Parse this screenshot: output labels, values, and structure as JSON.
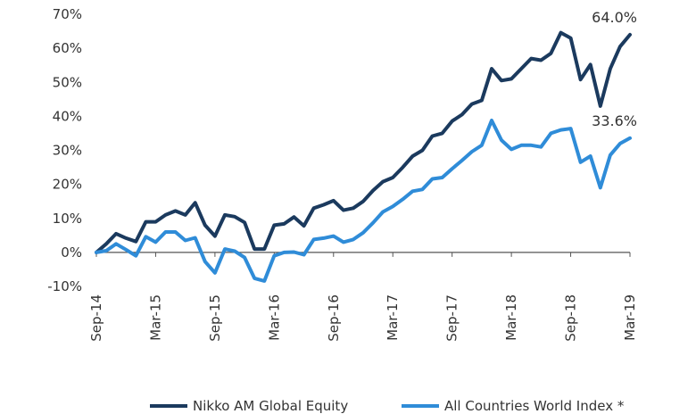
{
  "chart_data": {
    "type": "line",
    "x": [
      "Sep-14",
      "Oct-14",
      "Nov-14",
      "Dec-14",
      "Jan-15",
      "Feb-15",
      "Mar-15",
      "Apr-15",
      "May-15",
      "Jun-15",
      "Jul-15",
      "Aug-15",
      "Sep-15",
      "Oct-15",
      "Nov-15",
      "Dec-15",
      "Jan-16",
      "Feb-16",
      "Mar-16",
      "Apr-16",
      "May-16",
      "Jun-16",
      "Jul-16",
      "Aug-16",
      "Sep-16",
      "Oct-16",
      "Nov-16",
      "Dec-16",
      "Jan-17",
      "Feb-17",
      "Mar-17",
      "Apr-17",
      "May-17",
      "Jun-17",
      "Jul-17",
      "Aug-17",
      "Sep-17",
      "Oct-17",
      "Nov-17",
      "Dec-17",
      "Jan-18",
      "Feb-18",
      "Mar-18",
      "Apr-18",
      "May-18",
      "Jun-18",
      "Jul-18",
      "Aug-18",
      "Sep-18",
      "Oct-18",
      "Nov-18",
      "Dec-18",
      "Jan-19",
      "Feb-19",
      "Mar-19"
    ],
    "x_tick_labels": [
      "Sep-14",
      "Mar-15",
      "Sep-15",
      "Mar-16",
      "Sep-16",
      "Mar-17",
      "Sep-17",
      "Mar-18",
      "Sep-18",
      "Mar-19"
    ],
    "series": [
      {
        "name": "Nikko AM Global Equity",
        "color": "#1b3a5e",
        "values": [
          0,
          2.5,
          5.5,
          4.2,
          3.2,
          9,
          9,
          11,
          12.2,
          11,
          14.6,
          8,
          4.8,
          11,
          10.5,
          8.8,
          1,
          1,
          8,
          8.4,
          10.4,
          7.8,
          13,
          14,
          15.2,
          12.4,
          13,
          15,
          18.2,
          20.8,
          22,
          25,
          28.3,
          30,
          34.2,
          35,
          38.6,
          40.5,
          43.6,
          44.7,
          54,
          50.5,
          51,
          54,
          57,
          56.5,
          58.5,
          64.6,
          63,
          50.8,
          55.2,
          43,
          54,
          60.5,
          64
        ]
      },
      {
        "name": "All Countries World Index *",
        "color": "#2f8cd8",
        "values": [
          0,
          0.5,
          2.5,
          0.8,
          -1,
          4.6,
          3,
          6,
          6,
          3.5,
          4.3,
          -2.7,
          -6,
          1,
          0.4,
          -1.5,
          -7.6,
          -8.4,
          -1,
          0,
          0.1,
          -0.7,
          3.8,
          4.2,
          4.8,
          3,
          3.8,
          5.8,
          8.7,
          11.9,
          13.5,
          15.6,
          18,
          18.5,
          21.6,
          22,
          24.6,
          27,
          29.6,
          31.5,
          38.8,
          33,
          30.3,
          31.5,
          31.5,
          31,
          35,
          36,
          36.4,
          26.5,
          28.3,
          19,
          28.6,
          32,
          33.6
        ]
      }
    ],
    "ylim": [
      -10,
      70
    ],
    "y_ticks": [
      "-10%",
      "0%",
      "10%",
      "20%",
      "30%",
      "40%",
      "50%",
      "60%",
      "70%"
    ],
    "y_tick_values": [
      -10,
      0,
      10,
      20,
      30,
      40,
      50,
      60,
      70
    ],
    "annotations": [
      {
        "series": 0,
        "text": "64.0%"
      },
      {
        "series": 1,
        "text": "33.6%"
      }
    ],
    "title": "",
    "xlabel": "",
    "ylabel": "",
    "grid": false,
    "legend_position": "bottom"
  }
}
